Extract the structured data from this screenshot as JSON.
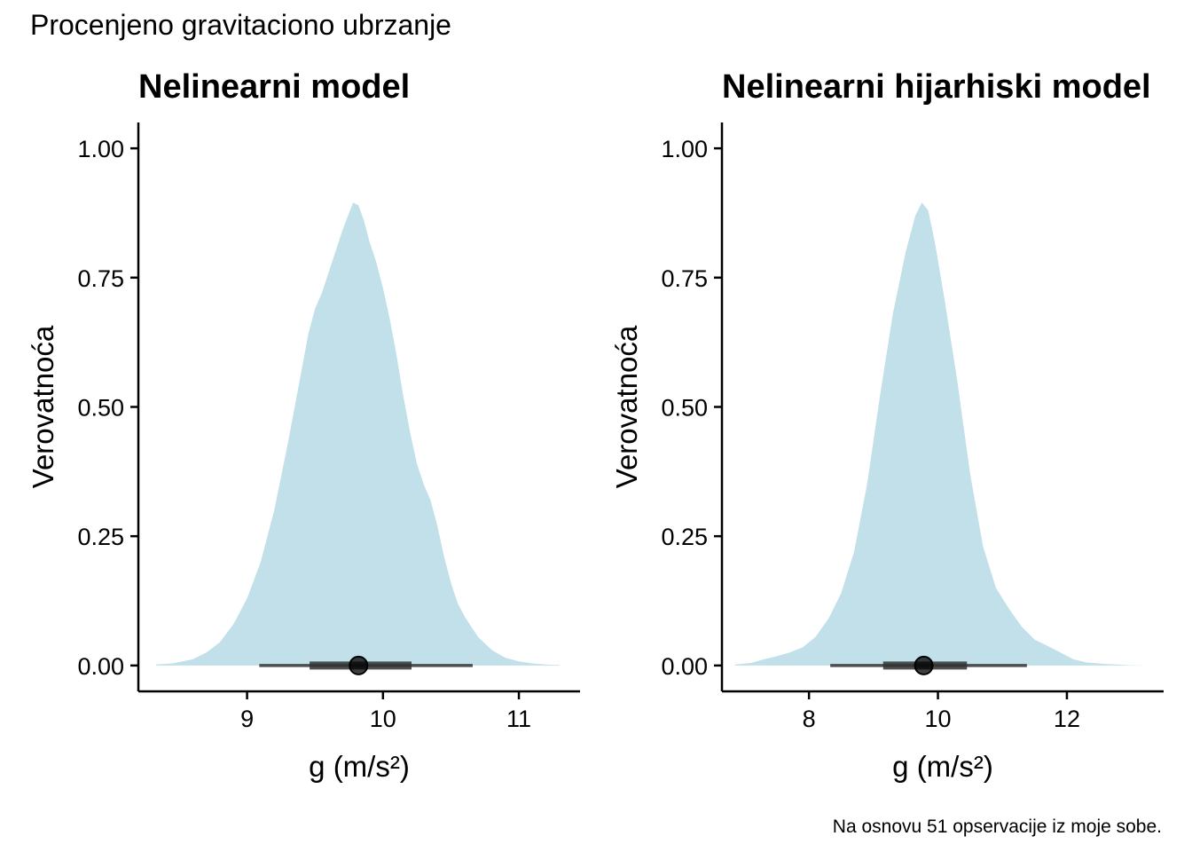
{
  "figure": {
    "title": "Procenjeno gravitaciono ubrzanje",
    "caption": "Na osnovu 51 opservacije iz moje sobe."
  },
  "colors": {
    "density_fill": "#c1e0ea",
    "interval_line": "#333333",
    "point": "#000000"
  },
  "chart_data": [
    {
      "type": "area",
      "title": "Nelinearni model",
      "xlabel": "g (m/s²)",
      "ylabel": "Verovatnoća",
      "xlim": [
        8.2,
        11.45
      ],
      "ylim": [
        -0.05,
        1.05
      ],
      "xticks": [
        {
          "value": 9,
          "label": "9"
        },
        {
          "value": 10,
          "label": "10"
        },
        {
          "value": 11,
          "label": "11"
        }
      ],
      "yticks": [
        {
          "value": 0,
          "label": "0.00"
        },
        {
          "value": 0.25,
          "label": "0.25"
        },
        {
          "value": 0.5,
          "label": "0.50"
        },
        {
          "value": 0.75,
          "label": "0.75"
        },
        {
          "value": 1,
          "label": "1.00"
        }
      ],
      "density": {
        "x": [
          8.33,
          8.45,
          8.6,
          8.7,
          8.8,
          8.9,
          9.0,
          9.1,
          9.2,
          9.3,
          9.4,
          9.45,
          9.5,
          9.55,
          9.6,
          9.65,
          9.7,
          9.75,
          9.78,
          9.82,
          9.86,
          9.9,
          9.95,
          10.0,
          10.05,
          10.1,
          10.15,
          10.2,
          10.25,
          10.3,
          10.35,
          10.4,
          10.45,
          10.5,
          10.55,
          10.6,
          10.65,
          10.7,
          10.8,
          10.9,
          11.0,
          11.1,
          11.2,
          11.3
        ],
        "y": [
          0.002,
          0.004,
          0.012,
          0.025,
          0.045,
          0.08,
          0.13,
          0.2,
          0.3,
          0.43,
          0.57,
          0.64,
          0.69,
          0.72,
          0.76,
          0.8,
          0.84,
          0.875,
          0.895,
          0.89,
          0.86,
          0.82,
          0.78,
          0.73,
          0.67,
          0.6,
          0.52,
          0.45,
          0.39,
          0.35,
          0.32,
          0.27,
          0.21,
          0.16,
          0.12,
          0.095,
          0.075,
          0.055,
          0.03,
          0.015,
          0.008,
          0.004,
          0.002,
          0.001
        ]
      },
      "point_interval": {
        "point": 9.82,
        "inner": [
          9.46,
          10.21
        ],
        "outer": [
          9.09,
          10.66
        ]
      }
    },
    {
      "type": "area",
      "title": "Nelinearni hijarhiski model",
      "xlabel": "g (m/s²)",
      "ylabel": "Verovatnoća",
      "xlim": [
        6.65,
        13.5
      ],
      "ylim": [
        -0.05,
        1.05
      ],
      "xticks": [
        {
          "value": 8,
          "label": "8"
        },
        {
          "value": 10,
          "label": "10"
        },
        {
          "value": 12,
          "label": "12"
        }
      ],
      "yticks": [
        {
          "value": 0,
          "label": "0.00"
        },
        {
          "value": 0.25,
          "label": "0.25"
        },
        {
          "value": 0.5,
          "label": "0.50"
        },
        {
          "value": 0.75,
          "label": "0.75"
        },
        {
          "value": 1,
          "label": "1.00"
        }
      ],
      "density": {
        "x": [
          6.85,
          7.1,
          7.3,
          7.5,
          7.7,
          7.9,
          8.1,
          8.3,
          8.5,
          8.7,
          8.9,
          9.1,
          9.3,
          9.5,
          9.65,
          9.75,
          9.85,
          9.95,
          10.1,
          10.3,
          10.5,
          10.7,
          10.9,
          11.1,
          11.3,
          11.5,
          11.7,
          11.9,
          12.1,
          12.3,
          12.6,
          12.9,
          13.2
        ],
        "y": [
          0.002,
          0.005,
          0.012,
          0.018,
          0.025,
          0.035,
          0.055,
          0.09,
          0.14,
          0.22,
          0.35,
          0.52,
          0.68,
          0.8,
          0.87,
          0.895,
          0.88,
          0.82,
          0.71,
          0.55,
          0.37,
          0.23,
          0.15,
          0.11,
          0.075,
          0.05,
          0.038,
          0.025,
          0.012,
          0.006,
          0.003,
          0.001,
          0.0
        ]
      },
      "point_interval": {
        "point": 9.78,
        "inner": [
          9.15,
          10.45
        ],
        "outer": [
          8.33,
          11.38
        ]
      }
    }
  ]
}
